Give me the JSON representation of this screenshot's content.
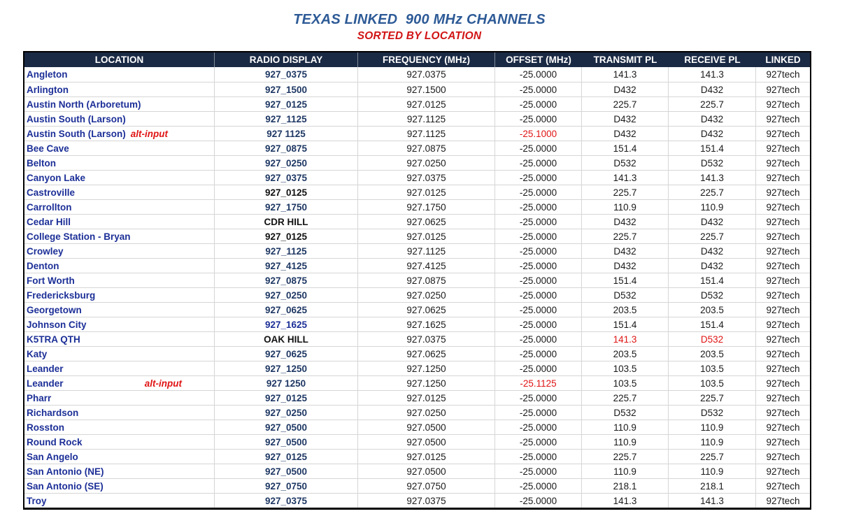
{
  "title": "TEXAS LINKED  900 MHz CHANNELS",
  "subtitle": "SORTED BY LOCATION",
  "alt_label": "alt-input",
  "colors": {
    "title-color": "#2d5a96",
    "subtitle-color": "#d11414",
    "header-bg": "#1b2a44",
    "header-text": "#ffffff",
    "location-text": "#1c2f97",
    "display-navy": "#1f3864",
    "display-blue": "#1c2f97",
    "display-black": "#111111",
    "cell-text": "#1a1a1a",
    "alert-red": "#e01414",
    "grid-line": "#d6d6d6",
    "outer-border": "#000000"
  },
  "table": {
    "columns": [
      {
        "key": "location",
        "label": "LOCATION"
      },
      {
        "key": "display",
        "label": "RADIO DISPLAY"
      },
      {
        "key": "frequency",
        "label": "FREQUENCY (MHz)"
      },
      {
        "key": "offset",
        "label": "OFFSET (MHz)"
      },
      {
        "key": "transmit",
        "label": "TRANSMIT PL"
      },
      {
        "key": "receive",
        "label": "RECEIVE PL"
      },
      {
        "key": "linked",
        "label": "LINKED"
      }
    ],
    "rows": [
      {
        "location": "Angleton",
        "alt": "",
        "display": "927_0375",
        "display_style": "navy",
        "frequency": "927.0375",
        "offset": "-25.0000",
        "offset_red": false,
        "transmit": "141.3",
        "transmit_red": false,
        "receive": "141.3",
        "receive_red": false,
        "linked": "927tech"
      },
      {
        "location": "Arlington",
        "alt": "",
        "display": "927_1500",
        "display_style": "navy",
        "frequency": "927.1500",
        "offset": "-25.0000",
        "offset_red": false,
        "transmit": "D432",
        "transmit_red": false,
        "receive": "D432",
        "receive_red": false,
        "linked": "927tech"
      },
      {
        "location": "Austin North (Arboretum)",
        "alt": "",
        "display": "927_0125",
        "display_style": "navy",
        "frequency": "927.0125",
        "offset": "-25.0000",
        "offset_red": false,
        "transmit": "225.7",
        "transmit_red": false,
        "receive": "225.7",
        "receive_red": false,
        "linked": "927tech"
      },
      {
        "location": "Austin South (Larson)",
        "alt": "",
        "display": "927_1125",
        "display_style": "navy",
        "frequency": "927.1125",
        "offset": "-25.0000",
        "offset_red": false,
        "transmit": "D432",
        "transmit_red": false,
        "receive": "D432",
        "receive_red": false,
        "linked": "927tech"
      },
      {
        "location": "Austin South (Larson)",
        "alt": "inline",
        "display": "927 1125",
        "display_style": "navy",
        "frequency": "927.1125",
        "offset": "-25.1000",
        "offset_red": true,
        "transmit": "D432",
        "transmit_red": false,
        "receive": "D432",
        "receive_red": false,
        "linked": "927tech"
      },
      {
        "location": "Bee Cave",
        "alt": "",
        "display": "927_0875",
        "display_style": "navy",
        "frequency": "927.0875",
        "offset": "-25.0000",
        "offset_red": false,
        "transmit": "151.4",
        "transmit_red": false,
        "receive": "151.4",
        "receive_red": false,
        "linked": "927tech"
      },
      {
        "location": "Belton",
        "alt": "",
        "display": "927_0250",
        "display_style": "navy",
        "frequency": "927.0250",
        "offset": "-25.0000",
        "offset_red": false,
        "transmit": "D532",
        "transmit_red": false,
        "receive": "D532",
        "receive_red": false,
        "linked": "927tech"
      },
      {
        "location": "Canyon Lake",
        "alt": "",
        "display": "927_0375",
        "display_style": "navy",
        "frequency": "927.0375",
        "offset": "-25.0000",
        "offset_red": false,
        "transmit": "141.3",
        "transmit_red": false,
        "receive": "141.3",
        "receive_red": false,
        "linked": "927tech"
      },
      {
        "location": "Castroville",
        "alt": "",
        "display": "927_0125",
        "display_style": "black",
        "frequency": "927.0125",
        "offset": "-25.0000",
        "offset_red": false,
        "transmit": "225.7",
        "transmit_red": false,
        "receive": "225.7",
        "receive_red": false,
        "linked": "927tech"
      },
      {
        "location": "Carrollton",
        "alt": "",
        "display": "927_1750",
        "display_style": "navy",
        "frequency": "927.1750",
        "offset": "-25.0000",
        "offset_red": false,
        "transmit": "110.9",
        "transmit_red": false,
        "receive": "110.9",
        "receive_red": false,
        "linked": "927tech"
      },
      {
        "location": "Cedar Hill",
        "alt": "",
        "display": "CDR HILL",
        "display_style": "black",
        "frequency": "927.0625",
        "offset": "-25.0000",
        "offset_red": false,
        "transmit": "D432",
        "transmit_red": false,
        "receive": "D432",
        "receive_red": false,
        "linked": "927tech"
      },
      {
        "location": "College Station - Bryan",
        "alt": "",
        "display": "927_0125",
        "display_style": "black",
        "frequency": "927.0125",
        "offset": "-25.0000",
        "offset_red": false,
        "transmit": "225.7",
        "transmit_red": false,
        "receive": "225.7",
        "receive_red": false,
        "linked": "927tech"
      },
      {
        "location": "Crowley",
        "alt": "",
        "display": "927_1125",
        "display_style": "navy",
        "frequency": "927.1125",
        "offset": "-25.0000",
        "offset_red": false,
        "transmit": "D432",
        "transmit_red": false,
        "receive": "D432",
        "receive_red": false,
        "linked": "927tech"
      },
      {
        "location": "Denton",
        "alt": "",
        "display": "927_4125",
        "display_style": "navy",
        "frequency": "927.4125",
        "offset": "-25.0000",
        "offset_red": false,
        "transmit": "D432",
        "transmit_red": false,
        "receive": "D432",
        "receive_red": false,
        "linked": "927tech"
      },
      {
        "location": "Fort Worth",
        "alt": "",
        "display": "927_0875",
        "display_style": "navy",
        "frequency": "927.0875",
        "offset": "-25.0000",
        "offset_red": false,
        "transmit": "151.4",
        "transmit_red": false,
        "receive": "151.4",
        "receive_red": false,
        "linked": "927tech"
      },
      {
        "location": "Fredericksburg",
        "alt": "",
        "display": "927_0250",
        "display_style": "navy",
        "frequency": "927.0250",
        "offset": "-25.0000",
        "offset_red": false,
        "transmit": "D532",
        "transmit_red": false,
        "receive": "D532",
        "receive_red": false,
        "linked": "927tech"
      },
      {
        "location": "Georgetown",
        "alt": "",
        "display": "927_0625",
        "display_style": "navy",
        "frequency": "927.0625",
        "offset": "-25.0000",
        "offset_red": false,
        "transmit": "203.5",
        "transmit_red": false,
        "receive": "203.5",
        "receive_red": false,
        "linked": "927tech"
      },
      {
        "location": "Johnson City",
        "alt": "",
        "display": "927_1625",
        "display_style": "blue",
        "frequency": "927.1625",
        "offset": "-25.0000",
        "offset_red": false,
        "transmit": "151.4",
        "transmit_red": false,
        "receive": "151.4",
        "receive_red": false,
        "linked": "927tech"
      },
      {
        "location": "K5TRA QTH",
        "alt": "",
        "display": "OAK HILL",
        "display_style": "black",
        "frequency": "927.0375",
        "offset": "-25.0000",
        "offset_red": false,
        "transmit": "141.3",
        "transmit_red": true,
        "receive": "D532",
        "receive_red": true,
        "linked": "927tech"
      },
      {
        "location": "Katy",
        "alt": "",
        "display": "927_0625",
        "display_style": "navy",
        "frequency": "927.0625",
        "offset": "-25.0000",
        "offset_red": false,
        "transmit": "203.5",
        "transmit_red": false,
        "receive": "203.5",
        "receive_red": false,
        "linked": "927tech"
      },
      {
        "location": "Leander",
        "alt": "",
        "display": "927_1250",
        "display_style": "navy",
        "frequency": "927.1250",
        "offset": "-25.0000",
        "offset_red": false,
        "transmit": "103.5",
        "transmit_red": false,
        "receive": "103.5",
        "receive_red": false,
        "linked": "927tech"
      },
      {
        "location": "Leander",
        "alt": "tabbed",
        "display": "927 1250",
        "display_style": "navy",
        "frequency": "927.1250",
        "offset": "-25.1125",
        "offset_red": true,
        "transmit": "103.5",
        "transmit_red": false,
        "receive": "103.5",
        "receive_red": false,
        "linked": "927tech"
      },
      {
        "location": "Pharr",
        "alt": "",
        "display": "927_0125",
        "display_style": "navy",
        "frequency": "927.0125",
        "offset": "-25.0000",
        "offset_red": false,
        "transmit": "225.7",
        "transmit_red": false,
        "receive": "225.7",
        "receive_red": false,
        "linked": "927tech"
      },
      {
        "location": "Richardson",
        "alt": "",
        "display": "927_0250",
        "display_style": "navy",
        "frequency": "927.0250",
        "offset": "-25.0000",
        "offset_red": false,
        "transmit": "D532",
        "transmit_red": false,
        "receive": "D532",
        "receive_red": false,
        "linked": "927tech"
      },
      {
        "location": "Rosston",
        "alt": "",
        "display": "927_0500",
        "display_style": "navy",
        "frequency": "927.0500",
        "offset": "-25.0000",
        "offset_red": false,
        "transmit": "110.9",
        "transmit_red": false,
        "receive": "110.9",
        "receive_red": false,
        "linked": "927tech"
      },
      {
        "location": "Round Rock",
        "alt": "",
        "display": "927_0500",
        "display_style": "navy",
        "frequency": "927.0500",
        "offset": "-25.0000",
        "offset_red": false,
        "transmit": "110.9",
        "transmit_red": false,
        "receive": "110.9",
        "receive_red": false,
        "linked": "927tech"
      },
      {
        "location": "San Angelo",
        "alt": "",
        "display": "927_0125",
        "display_style": "navy",
        "frequency": "927.0125",
        "offset": "-25.0000",
        "offset_red": false,
        "transmit": "225.7",
        "transmit_red": false,
        "receive": "225.7",
        "receive_red": false,
        "linked": "927tech"
      },
      {
        "location": "San Antonio (NE)",
        "alt": "",
        "display": "927_0500",
        "display_style": "navy",
        "frequency": "927.0500",
        "offset": "-25.0000",
        "offset_red": false,
        "transmit": "110.9",
        "transmit_red": false,
        "receive": "110.9",
        "receive_red": false,
        "linked": "927tech"
      },
      {
        "location": "San Antonio (SE)",
        "alt": "",
        "display": "927_0750",
        "display_style": "navy",
        "frequency": "927.0750",
        "offset": "-25.0000",
        "offset_red": false,
        "transmit": "218.1",
        "transmit_red": false,
        "receive": "218.1",
        "receive_red": false,
        "linked": "927tech"
      },
      {
        "location": "Troy",
        "alt": "",
        "display": "927_0375",
        "display_style": "navy",
        "frequency": "927.0375",
        "offset": "-25.0000",
        "offset_red": false,
        "transmit": "141.3",
        "transmit_red": false,
        "receive": "141.3",
        "receive_red": false,
        "linked": "927tech"
      }
    ]
  }
}
